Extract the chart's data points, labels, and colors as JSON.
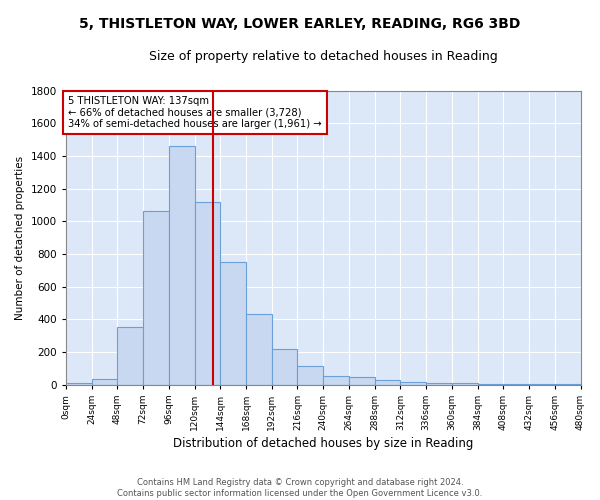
{
  "title1": "5, THISTLETON WAY, LOWER EARLEY, READING, RG6 3BD",
  "title2": "Size of property relative to detached houses in Reading",
  "xlabel": "Distribution of detached houses by size in Reading",
  "ylabel": "Number of detached properties",
  "bin_edges": [
    0,
    24,
    48,
    72,
    96,
    120,
    144,
    168,
    192,
    216,
    240,
    264,
    288,
    312,
    336,
    360,
    384,
    408,
    432,
    456,
    480
  ],
  "bar_heights": [
    10,
    35,
    355,
    1060,
    1460,
    1120,
    750,
    435,
    220,
    115,
    55,
    48,
    30,
    18,
    12,
    8,
    5,
    3,
    2,
    1
  ],
  "bar_color": "#c8d8f0",
  "bar_edge_color": "#6a9fd8",
  "property_size": 137,
  "vline_color": "#cc0000",
  "annotation_text": "5 THISTLETON WAY: 137sqm\n← 66% of detached houses are smaller (3,728)\n34% of semi-detached houses are larger (1,961) →",
  "annotation_box_color": "#ffffff",
  "annotation_box_edge_color": "#cc0000",
  "ylim": [
    0,
    1800
  ],
  "yticks": [
    0,
    200,
    400,
    600,
    800,
    1000,
    1200,
    1400,
    1600,
    1800
  ],
  "footer_text": "Contains HM Land Registry data © Crown copyright and database right 2024.\nContains public sector information licensed under the Open Government Licence v3.0.",
  "outer_background_color": "#ffffff",
  "plot_background_color": "#dce8f8",
  "grid_color": "#ffffff",
  "title1_fontsize": 10,
  "title2_fontsize": 9
}
